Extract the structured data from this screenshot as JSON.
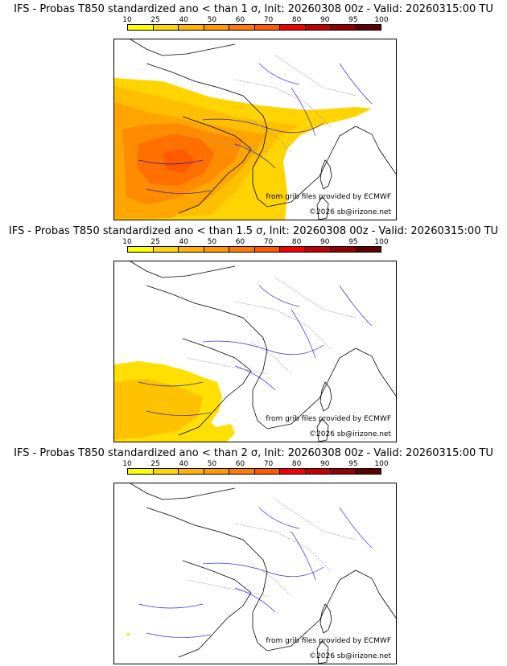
{
  "product": "IFS - Probas T850",
  "panels": [
    {
      "title": "IFS - Probas T850  standardized ano < than 1 σ, Init: 20260308 00z - Valid: 20260315:00 TU",
      "threshold": "1 σ"
    },
    {
      "title": "IFS - Probas T850  standardized ano < than 1.5 σ, Init: 20260308 00z - Valid: 20260315:00 TU",
      "threshold": "1.5 σ"
    },
    {
      "title": "IFS - Probas T850  standardized ano < than 2 σ, Init: 20260308 00z - Valid: 20260315:00 TU",
      "threshold": "2 σ"
    }
  ],
  "colorbar": {
    "labels": [
      "10",
      "25",
      "40",
      "50",
      "60",
      "70",
      "80",
      "90",
      "95",
      "100"
    ],
    "colors": [
      "#ffff00",
      "#ffd800",
      "#ffb400",
      "#ff9a00",
      "#ff7a00",
      "#ff5a00",
      "#f00000",
      "#c00000",
      "#900000",
      "#5a0000"
    ]
  },
  "credits": {
    "source": "from grib files provided by ECMWF",
    "copyright": "©2026 sb@irizone.net"
  },
  "colors": {
    "coast": "#000000",
    "rivers": "#0000cc",
    "borders": "#999999"
  }
}
